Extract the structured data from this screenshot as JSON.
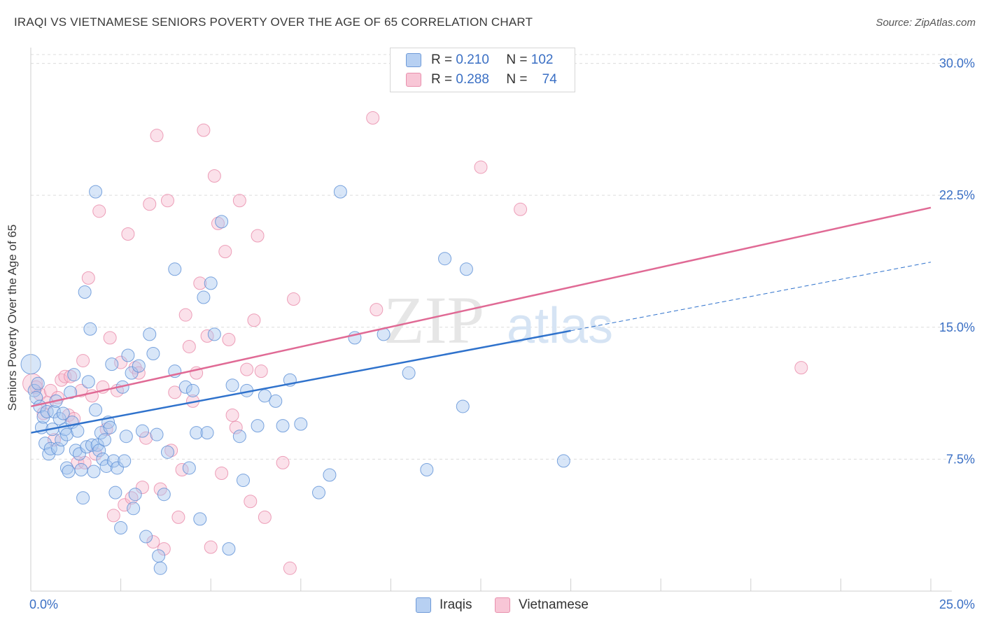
{
  "header": {
    "title": "IRAQI VS VIETNAMESE SENIORS POVERTY OVER THE AGE OF 65 CORRELATION CHART",
    "source": "Source: ZipAtlas.com"
  },
  "watermark": {
    "main": "ZIP",
    "sub": "atlas"
  },
  "legend": {
    "rows": [
      {
        "r_label": "R =",
        "r_value": "0.210",
        "n_label": "N =",
        "n_value": "102"
      },
      {
        "r_label": "R =",
        "r_value": "0.288",
        "n_label": "N =",
        "n_value": "74"
      }
    ],
    "bottom": [
      "Iraqis",
      "Vietnamese"
    ]
  },
  "colors": {
    "iraqis_fill": "#a9c8f0",
    "iraqis_stroke": "#5b8fd6",
    "iraqis_line": "#2f72cc",
    "vietnamese_fill": "#f7bdd0",
    "vietnamese_stroke": "#e88aa9",
    "vietnamese_line": "#e06a95",
    "tick_label": "#3a6fc4",
    "grid": "#dcdcdc"
  },
  "chart_data": {
    "type": "scatter",
    "title": "IRAQI VS VIETNAMESE SENIORS POVERTY OVER THE AGE OF 65 CORRELATION CHART",
    "xlabel": "",
    "ylabel": "Seniors Poverty Over the Age of 65",
    "xlim": [
      0,
      25
    ],
    "ylim": [
      0,
      30.5
    ],
    "x_tick_labels": [
      "0.0%",
      "25.0%"
    ],
    "y_ticks": [
      7.5,
      15.0,
      22.5,
      30.0
    ],
    "y_tick_labels": [
      "7.5%",
      "15.0%",
      "22.5%",
      "30.0%"
    ],
    "grid": true,
    "legend_position": "top-center",
    "series": [
      {
        "name": "Iraqis",
        "r": 0.21,
        "n": 102,
        "trend": {
          "x": [
            0,
            15
          ],
          "y": [
            9.0,
            14.8
          ]
        },
        "trend_extension": {
          "x": [
            15,
            25
          ],
          "y": [
            14.8,
            18.7
          ]
        },
        "points": [
          [
            0.0,
            12.9
          ],
          [
            0.1,
            11.4
          ],
          [
            0.15,
            11.0
          ],
          [
            0.2,
            11.8
          ],
          [
            0.25,
            10.5
          ],
          [
            0.3,
            9.3
          ],
          [
            0.35,
            9.9
          ],
          [
            0.4,
            8.4
          ],
          [
            0.45,
            10.2
          ],
          [
            0.5,
            7.8
          ],
          [
            0.55,
            8.1
          ],
          [
            0.6,
            9.2
          ],
          [
            0.65,
            10.2
          ],
          [
            0.7,
            10.8
          ],
          [
            0.75,
            8.1
          ],
          [
            0.8,
            9.8
          ],
          [
            0.85,
            8.6
          ],
          [
            0.9,
            10.1
          ],
          [
            0.95,
            9.2
          ],
          [
            1.0,
            8.9
          ],
          [
            1.0,
            7.0
          ],
          [
            1.05,
            6.8
          ],
          [
            1.1,
            11.3
          ],
          [
            1.15,
            9.6
          ],
          [
            1.2,
            12.3
          ],
          [
            1.25,
            8.0
          ],
          [
            1.3,
            9.1
          ],
          [
            1.35,
            7.8
          ],
          [
            1.4,
            6.9
          ],
          [
            1.45,
            5.3
          ],
          [
            1.5,
            17.0
          ],
          [
            1.55,
            8.2
          ],
          [
            1.6,
            11.9
          ],
          [
            1.65,
            14.9
          ],
          [
            1.7,
            8.3
          ],
          [
            1.75,
            6.8
          ],
          [
            1.8,
            10.3
          ],
          [
            1.8,
            22.7
          ],
          [
            1.85,
            8.3
          ],
          [
            1.9,
            8.0
          ],
          [
            1.95,
            9.0
          ],
          [
            2.0,
            7.5
          ],
          [
            2.05,
            8.6
          ],
          [
            2.1,
            7.1
          ],
          [
            2.15,
            9.6
          ],
          [
            2.2,
            9.3
          ],
          [
            2.25,
            12.9
          ],
          [
            2.3,
            7.4
          ],
          [
            2.35,
            5.6
          ],
          [
            2.4,
            7.0
          ],
          [
            2.5,
            3.6
          ],
          [
            2.55,
            11.6
          ],
          [
            2.6,
            7.4
          ],
          [
            2.65,
            8.8
          ],
          [
            2.7,
            13.4
          ],
          [
            2.8,
            12.4
          ],
          [
            2.85,
            4.7
          ],
          [
            2.9,
            5.5
          ],
          [
            3.0,
            12.8
          ],
          [
            3.1,
            9.1
          ],
          [
            3.2,
            3.1
          ],
          [
            3.3,
            14.6
          ],
          [
            3.4,
            13.5
          ],
          [
            3.5,
            8.9
          ],
          [
            3.55,
            2.0
          ],
          [
            3.6,
            1.3
          ],
          [
            3.7,
            5.5
          ],
          [
            3.8,
            7.9
          ],
          [
            4.0,
            18.3
          ],
          [
            4.0,
            12.5
          ],
          [
            4.3,
            11.6
          ],
          [
            4.4,
            7.0
          ],
          [
            4.5,
            11.4
          ],
          [
            4.6,
            9.0
          ],
          [
            4.7,
            4.1
          ],
          [
            4.8,
            16.7
          ],
          [
            4.9,
            9.0
          ],
          [
            5.0,
            17.5
          ],
          [
            5.1,
            14.6
          ],
          [
            5.3,
            21.0
          ],
          [
            5.5,
            2.4
          ],
          [
            5.6,
            11.7
          ],
          [
            5.8,
            8.8
          ],
          [
            5.9,
            6.3
          ],
          [
            6.0,
            11.4
          ],
          [
            6.3,
            9.4
          ],
          [
            6.5,
            11.1
          ],
          [
            6.8,
            10.8
          ],
          [
            7.0,
            9.4
          ],
          [
            7.2,
            12.0
          ],
          [
            7.5,
            9.5
          ],
          [
            8.0,
            5.6
          ],
          [
            8.3,
            6.6
          ],
          [
            8.6,
            22.7
          ],
          [
            9.0,
            14.4
          ],
          [
            9.8,
            14.6
          ],
          [
            10.5,
            12.4
          ],
          [
            11.0,
            6.9
          ],
          [
            11.5,
            18.9
          ],
          [
            12.0,
            10.5
          ],
          [
            12.1,
            18.3
          ],
          [
            14.8,
            7.4
          ]
        ]
      },
      {
        "name": "Vietnamese",
        "r": 0.288,
        "n": 74,
        "trend": {
          "x": [
            0,
            25
          ],
          "y": [
            10.5,
            21.8
          ]
        },
        "points": [
          [
            0.05,
            11.8
          ],
          [
            0.15,
            11.6
          ],
          [
            0.25,
            11.2
          ],
          [
            0.35,
            10.1
          ],
          [
            0.45,
            10.7
          ],
          [
            0.55,
            11.4
          ],
          [
            0.65,
            8.6
          ],
          [
            0.75,
            11.0
          ],
          [
            0.85,
            12.0
          ],
          [
            0.95,
            12.2
          ],
          [
            1.05,
            10.0
          ],
          [
            1.1,
            12.2
          ],
          [
            1.2,
            9.8
          ],
          [
            1.3,
            7.3
          ],
          [
            1.4,
            11.4
          ],
          [
            1.45,
            13.1
          ],
          [
            1.5,
            7.3
          ],
          [
            1.6,
            17.8
          ],
          [
            1.7,
            11.1
          ],
          [
            1.8,
            7.8
          ],
          [
            1.9,
            21.6
          ],
          [
            2.0,
            11.6
          ],
          [
            2.1,
            9.2
          ],
          [
            2.2,
            14.4
          ],
          [
            2.3,
            4.3
          ],
          [
            2.4,
            11.4
          ],
          [
            2.5,
            13.0
          ],
          [
            2.6,
            4.9
          ],
          [
            2.7,
            20.3
          ],
          [
            2.8,
            5.3
          ],
          [
            2.9,
            12.7
          ],
          [
            3.0,
            12.4
          ],
          [
            3.1,
            5.9
          ],
          [
            3.2,
            8.7
          ],
          [
            3.3,
            22.0
          ],
          [
            3.4,
            2.8
          ],
          [
            3.5,
            25.9
          ],
          [
            3.6,
            5.8
          ],
          [
            3.7,
            2.4
          ],
          [
            3.8,
            22.2
          ],
          [
            3.9,
            8.0
          ],
          [
            4.0,
            11.3
          ],
          [
            4.1,
            4.2
          ],
          [
            4.2,
            6.9
          ],
          [
            4.3,
            15.7
          ],
          [
            4.4,
            13.9
          ],
          [
            4.5,
            10.8
          ],
          [
            4.6,
            12.4
          ],
          [
            4.7,
            17.5
          ],
          [
            4.8,
            26.2
          ],
          [
            4.9,
            14.5
          ],
          [
            5.0,
            2.5
          ],
          [
            5.1,
            23.6
          ],
          [
            5.2,
            20.9
          ],
          [
            5.3,
            6.7
          ],
          [
            5.4,
            19.3
          ],
          [
            5.5,
            14.3
          ],
          [
            5.6,
            10.0
          ],
          [
            5.7,
            9.3
          ],
          [
            5.8,
            22.2
          ],
          [
            6.0,
            12.6
          ],
          [
            6.1,
            5.1
          ],
          [
            6.2,
            15.4
          ],
          [
            6.3,
            20.2
          ],
          [
            6.4,
            12.5
          ],
          [
            6.5,
            4.2
          ],
          [
            7.0,
            7.3
          ],
          [
            7.2,
            1.3
          ],
          [
            7.3,
            16.6
          ],
          [
            9.5,
            26.9
          ],
          [
            9.6,
            16.0
          ],
          [
            12.5,
            24.1
          ],
          [
            13.6,
            21.7
          ],
          [
            21.4,
            12.7
          ]
        ]
      }
    ]
  }
}
